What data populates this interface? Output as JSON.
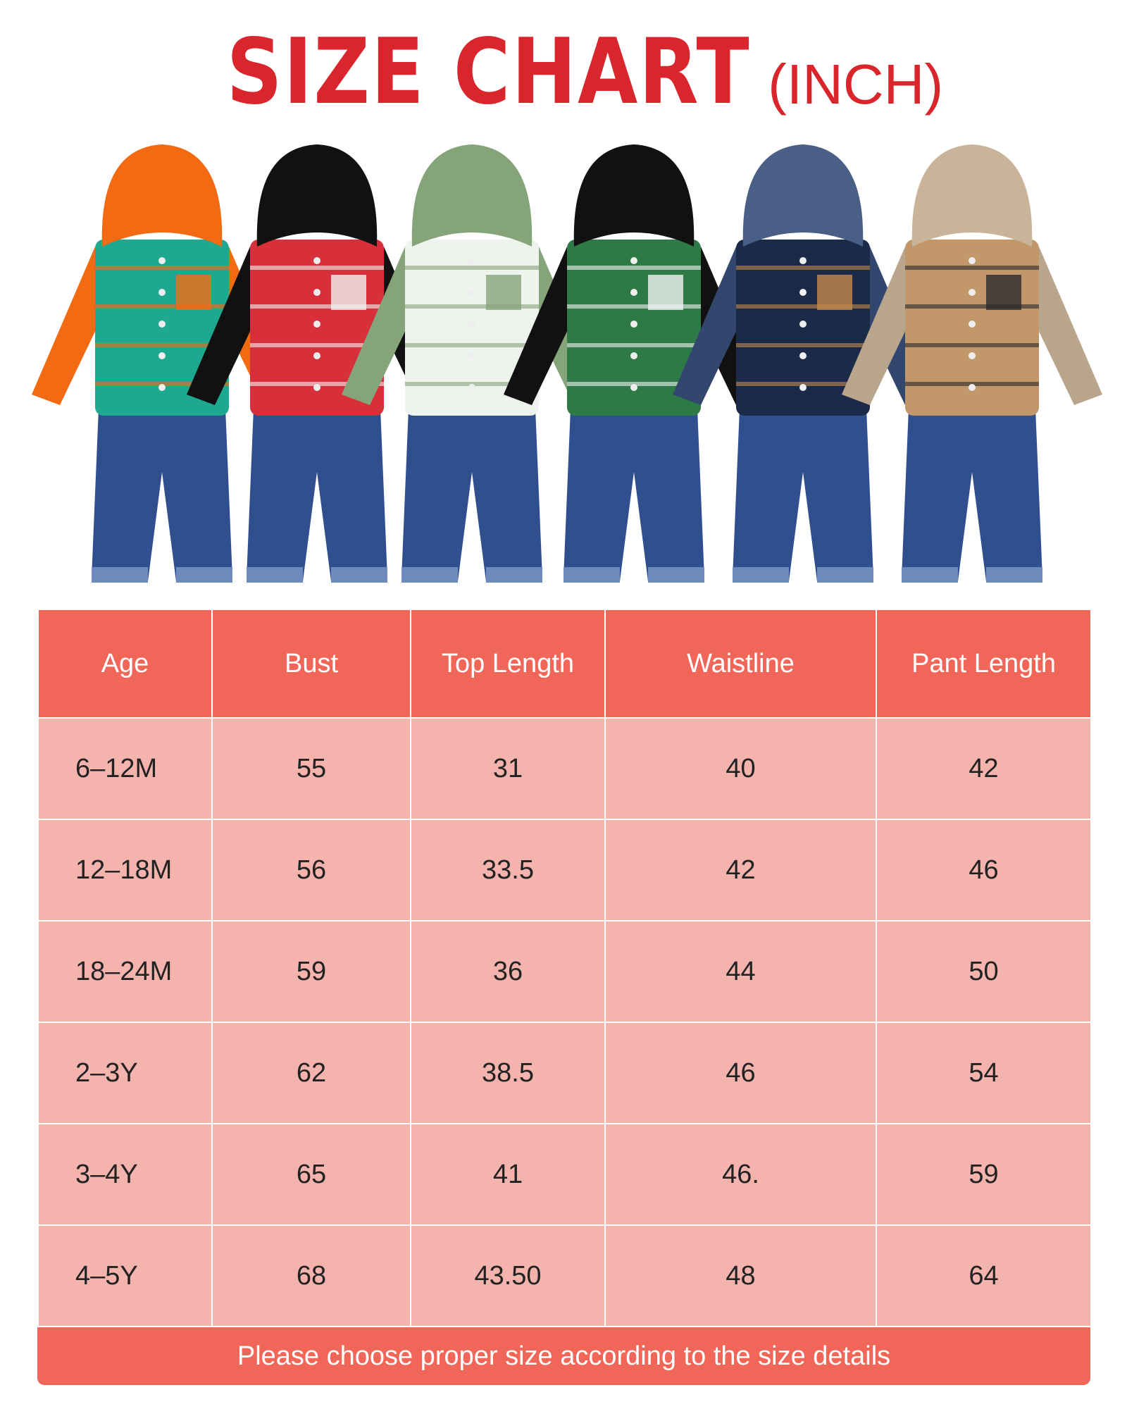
{
  "title": {
    "main": "SIZE CHART",
    "unit": "(INCH)",
    "color": "#d9262c"
  },
  "product_image": {
    "description_icon": "clothing-outfits-image",
    "outfits": [
      {
        "hood": "#f26a12",
        "shirt": "#1fa890",
        "accent": "#f26a12",
        "sleeve": "#f26a12"
      },
      {
        "hood": "#111111",
        "shirt": "#d8303a",
        "accent": "#f2f2f2",
        "sleeve": "#111111"
      },
      {
        "hood": "#86a47a",
        "shirt": "#eef3ee",
        "accent": "#86a47a",
        "sleeve": "#86a47a"
      },
      {
        "hood": "#111111",
        "shirt": "#2e7a46",
        "accent": "#f2f2f2",
        "sleeve": "#111111"
      },
      {
        "hood": "#4a5f86",
        "shirt": "#1c2a4a",
        "accent": "#c28a4a",
        "sleeve": "#33466e"
      },
      {
        "hood": "#c9b49a",
        "shirt": "#c2976a",
        "accent": "#2b2b2b",
        "sleeve": "#b9a58c"
      }
    ]
  },
  "colors": {
    "header": "#f0675a",
    "row": "#f4b3ad"
  },
  "table": {
    "headers": [
      "Age",
      "Bust",
      "Top Length",
      "Waistline",
      "Pant Length"
    ],
    "rows": [
      [
        "6–12M",
        "55",
        "31",
        "40",
        "42"
      ],
      [
        "12–18M",
        "56",
        "33.5",
        "42",
        "46"
      ],
      [
        "18–24M",
        "59",
        "36",
        "44",
        "50"
      ],
      [
        "2–3Y",
        "62",
        "38.5",
        "46",
        "54"
      ],
      [
        "3–4Y",
        "65",
        "41",
        "46.",
        "59"
      ],
      [
        "4–5Y",
        "68",
        "43.50",
        "48",
        "64"
      ]
    ]
  },
  "footer": "Please choose proper size according to the size details"
}
